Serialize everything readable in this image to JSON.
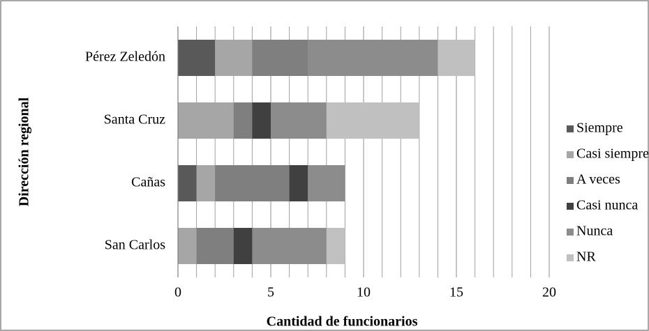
{
  "chart_data": {
    "type": "stacked-bar-horizontal",
    "xlabel": "Cantidad de funcionarios",
    "ylabel": "Dirección regional",
    "categories": [
      "San Carlos",
      "Cañas",
      "Santa Cruz",
      "Pérez Zeledón"
    ],
    "series": [
      {
        "name": "Siempre",
        "color": "#595959",
        "values": [
          0,
          1,
          0,
          2
        ]
      },
      {
        "name": "Casi siempre",
        "color": "#a6a6a6",
        "values": [
          1,
          1,
          3,
          2
        ]
      },
      {
        "name": "A veces",
        "color": "#7f7f7f",
        "values": [
          2,
          4,
          1,
          3
        ]
      },
      {
        "name": "Casi nunca",
        "color": "#404040",
        "values": [
          1,
          1,
          1,
          0
        ]
      },
      {
        "name": "Nunca",
        "color": "#8c8c8c",
        "values": [
          4,
          2,
          3,
          7
        ]
      },
      {
        "name": "NR",
        "color": "#c0c0c0",
        "values": [
          1,
          0,
          5,
          2
        ]
      }
    ],
    "xlim": [
      0,
      20
    ],
    "xticks": [
      0,
      5,
      10,
      15,
      20
    ],
    "minor_xticks": [
      1,
      2,
      3,
      4,
      6,
      7,
      8,
      9,
      11,
      12,
      13,
      14,
      16,
      17,
      18,
      19
    ],
    "grid": true,
    "legend": "right"
  }
}
